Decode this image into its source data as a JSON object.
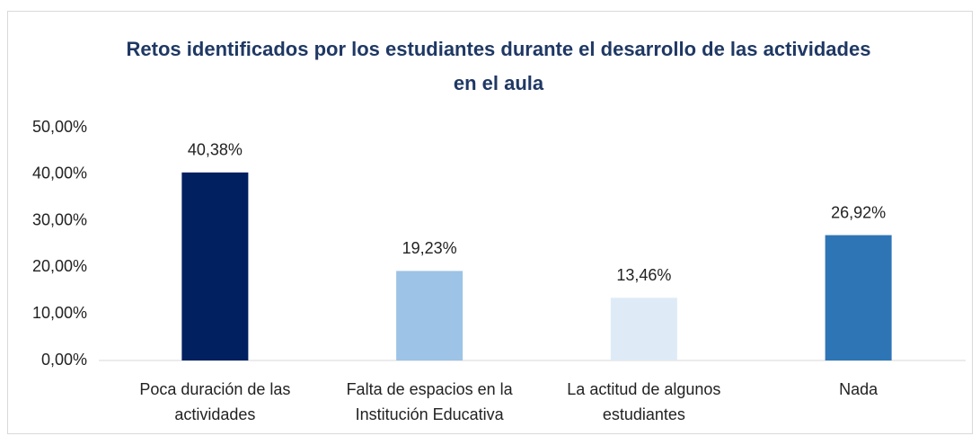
{
  "chart_data": {
    "type": "bar",
    "title": "Retos identificados por los estudiantes durante el desarrollo de las actividades en el aula",
    "categories": [
      [
        "Poca duración de las",
        "actividades"
      ],
      [
        "Falta de espacios en la",
        "Institución Educativa"
      ],
      [
        "La actitud de algunos",
        "estudiantes"
      ],
      [
        "Nada"
      ]
    ],
    "values": [
      40.38,
      19.23,
      13.46,
      26.92
    ],
    "value_labels": [
      "40,38%",
      "19,23%",
      "13,46%",
      "26,92%"
    ],
    "colors": [
      "#002060",
      "#9dc3e6",
      "#deebf7",
      "#2e75b6"
    ],
    "ylim": [
      0,
      50
    ],
    "yticks": [
      {
        "value": 0,
        "label": "0,00%"
      },
      {
        "value": 10,
        "label": "10,00%"
      },
      {
        "value": 20,
        "label": "20,00%"
      },
      {
        "value": 30,
        "label": "30,00%"
      },
      {
        "value": 40,
        "label": "40,00%"
      },
      {
        "value": 50,
        "label": "50,00%"
      }
    ],
    "grid": false
  }
}
